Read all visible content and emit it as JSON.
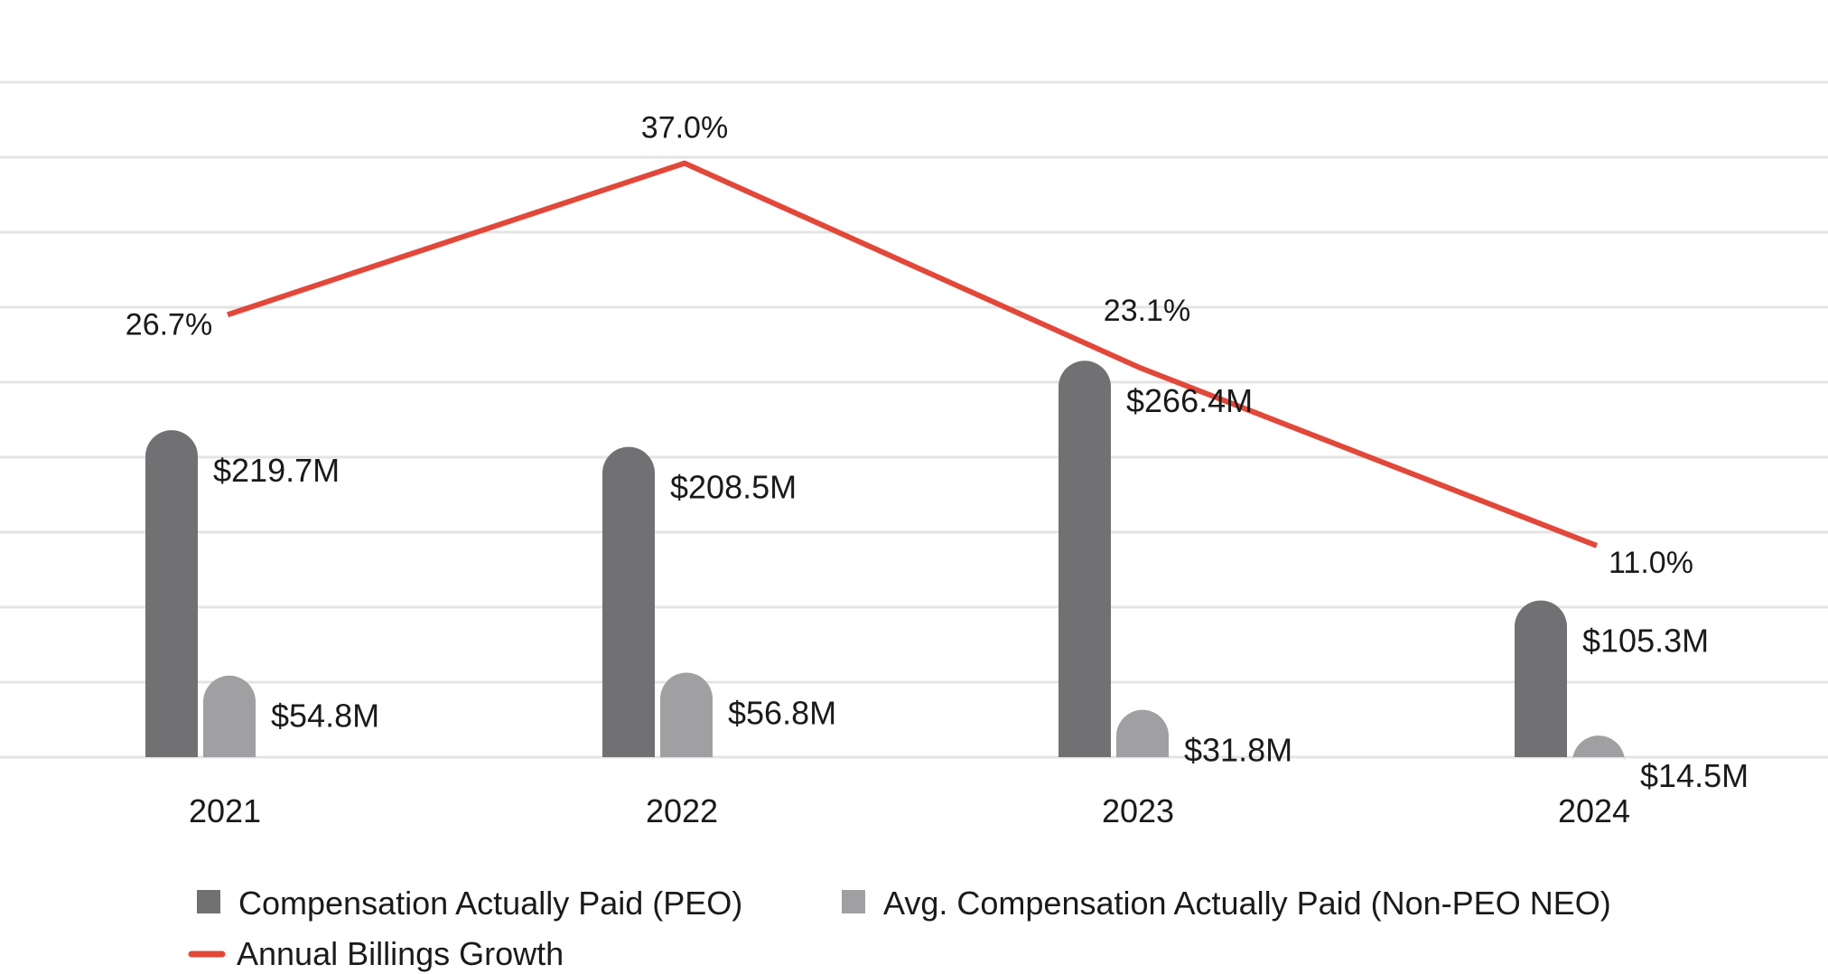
{
  "chart_data": {
    "type": "bar",
    "categories": [
      "2021",
      "2022",
      "2023",
      "2024"
    ],
    "series": [
      {
        "name": "Compensation Actually Paid (PEO)",
        "kind": "bar",
        "color": "#717174",
        "values": [
          219.7,
          208.5,
          266.4,
          105.3
        ],
        "labels": [
          "$219.7M",
          "$208.5M",
          "$266.4M",
          "$105.3M"
        ]
      },
      {
        "name": "Avg. Compensation Actually Paid (Non-PEO NEO)",
        "kind": "bar",
        "color": "#a0a0a3",
        "values": [
          54.8,
          56.8,
          31.8,
          14.5
        ],
        "labels": [
          "$54.8M",
          "$56.8M",
          "$31.8M",
          "$14.5M"
        ]
      },
      {
        "name": "Annual Billings Growth",
        "kind": "line",
        "color": "#e2483a",
        "values": [
          26.7,
          37.0,
          23.1,
          11.0
        ],
        "labels": [
          "26.7%",
          "37.0%",
          "23.1%",
          "11.0%"
        ]
      }
    ],
    "grid": true,
    "legend_position": "bottom-left"
  }
}
